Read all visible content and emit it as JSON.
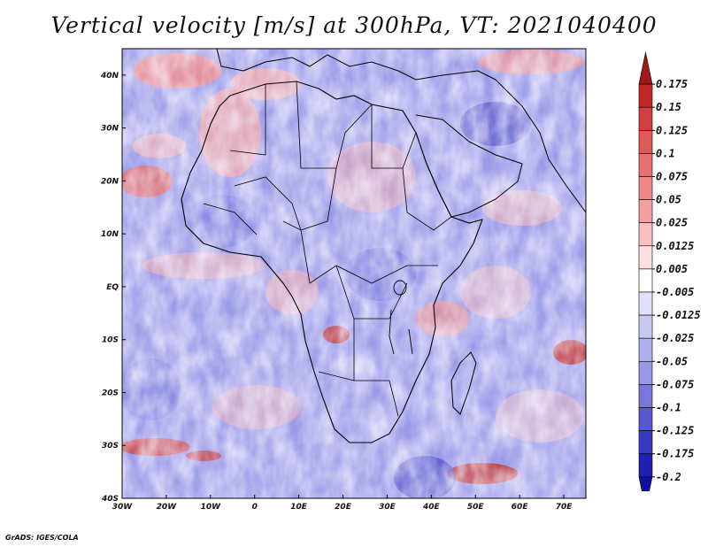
{
  "title": "Vertical velocity [m/s] at 300hPa, VT: 2021040400",
  "footer": "GrADS: IGES/COLA",
  "map": {
    "lon_range": [
      -30,
      75
    ],
    "lat_range": [
      -40,
      45
    ],
    "lat_ticks": [
      {
        "value": 40,
        "label": "40N"
      },
      {
        "value": 30,
        "label": "30N"
      },
      {
        "value": 20,
        "label": "20N"
      },
      {
        "value": 10,
        "label": "10N"
      },
      {
        "value": 0,
        "label": "EQ"
      },
      {
        "value": -10,
        "label": "10S"
      },
      {
        "value": -20,
        "label": "20S"
      },
      {
        "value": -30,
        "label": "30S"
      },
      {
        "value": -40,
        "label": "40S"
      }
    ],
    "lon_ticks": [
      {
        "value": -30,
        "label": "30W"
      },
      {
        "value": -20,
        "label": "20W"
      },
      {
        "value": -10,
        "label": "10W"
      },
      {
        "value": 0,
        "label": "0"
      },
      {
        "value": 10,
        "label": "10E"
      },
      {
        "value": 20,
        "label": "20E"
      },
      {
        "value": 30,
        "label": "30E"
      },
      {
        "value": 40,
        "label": "40E"
      },
      {
        "value": 50,
        "label": "50E"
      },
      {
        "value": 60,
        "label": "60E"
      },
      {
        "value": 70,
        "label": "70E"
      }
    ]
  },
  "colorbar": {
    "labels": [
      "0.175",
      "0.15",
      "0.125",
      "0.1",
      "0.075",
      "0.05",
      "0.025",
      "0.0125",
      "0.005",
      "-0.005",
      "-0.0125",
      "-0.025",
      "-0.05",
      "-0.075",
      "-0.1",
      "-0.125",
      "-0.175",
      "-0.2"
    ],
    "colors": [
      "#a01818",
      "#c02828",
      "#d04040",
      "#e05858",
      "#e87070",
      "#f08888",
      "#f4a0a0",
      "#f8c0c0",
      "#fce0e0",
      "#ffffff",
      "#e0e0fa",
      "#c8c8f4",
      "#b0b0ee",
      "#9898e6",
      "#7878dc",
      "#5858d0",
      "#3838c0",
      "#2020b0",
      "#1010a0"
    ]
  }
}
